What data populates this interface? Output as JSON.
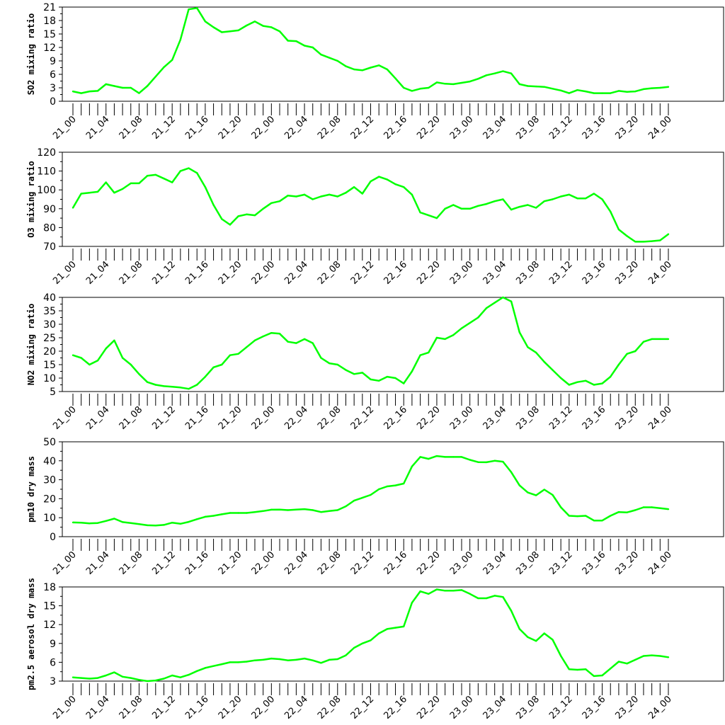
{
  "chart_data": [
    {
      "type": "line",
      "ylabel": "SO2 mixing ratio",
      "ylim": [
        0,
        21
      ],
      "yticks": [
        0,
        3,
        6,
        9,
        12,
        15,
        18,
        21
      ],
      "color": "#00ff00",
      "x_labels": [
        "21_00",
        "21_04",
        "21_08",
        "21_12",
        "21_16",
        "21_20",
        "22_00",
        "22_04",
        "22_08",
        "22_12",
        "22_16",
        "22_20",
        "23_00",
        "23_04",
        "23_08",
        "23_12",
        "23_16",
        "23_20",
        "24_00"
      ],
      "values": [
        2.2,
        1.8,
        2.2,
        2.3,
        3.8,
        3.4,
        3.0,
        3.0,
        1.8,
        3.4,
        5.5,
        7.6,
        9.2,
        13.7,
        20.5,
        20.8,
        17.8,
        16.5,
        15.4,
        15.6,
        15.8,
        16.9,
        17.8,
        16.8,
        16.5,
        15.6,
        13.5,
        13.4,
        12.4,
        12.0,
        10.4,
        9.7,
        9.0,
        7.8,
        7.1,
        6.9,
        7.5,
        8.0,
        7.1,
        5.1,
        3.0,
        2.3,
        2.8,
        3.0,
        4.2,
        3.9,
        3.8,
        4.1,
        4.4,
        5.0,
        5.8,
        6.2,
        6.7,
        6.2,
        3.8,
        3.4,
        3.3,
        3.2,
        2.8,
        2.4,
        1.8,
        2.5,
        2.2,
        1.8,
        1.8,
        1.8,
        2.3,
        2.1,
        2.2,
        2.7,
        2.9,
        3.0,
        3.2
      ]
    },
    {
      "type": "line",
      "ylabel": "O3 mixing ratio",
      "ylim": [
        70,
        120
      ],
      "yticks": [
        70,
        80,
        90,
        100,
        110,
        120
      ],
      "color": "#00ff00",
      "x_labels": [
        "21_00",
        "21_04",
        "21_08",
        "21_12",
        "21_16",
        "21_20",
        "22_00",
        "22_04",
        "22_08",
        "22_12",
        "22_16",
        "22_20",
        "23_00",
        "23_04",
        "23_08",
        "23_12",
        "23_16",
        "23_20",
        "24_00"
      ],
      "values": [
        90.5,
        98,
        98.5,
        99,
        104,
        98.5,
        100.5,
        103.5,
        103.5,
        107.5,
        108,
        106,
        104,
        110,
        111.5,
        109,
        101.5,
        92,
        84.5,
        81.5,
        86,
        87,
        86.5,
        90,
        93,
        94,
        97,
        96.5,
        97.5,
        95,
        96.5,
        97.5,
        96.5,
        98.5,
        101.5,
        98,
        104.5,
        107,
        105.5,
        103,
        101.5,
        97.5,
        88,
        86.5,
        85,
        90,
        92,
        90,
        90,
        91.5,
        92.5,
        94,
        95,
        89.5,
        91,
        92,
        90.5,
        94,
        95,
        96.5,
        97.5,
        95.5,
        95.5,
        98,
        95,
        88.5,
        79,
        75.5,
        72.5,
        72.5,
        72.8,
        73.2,
        76.5
      ]
    },
    {
      "type": "line",
      "ylabel": "NO2 mixing ratio",
      "ylim": [
        5,
        40
      ],
      "yticks": [
        5,
        10,
        15,
        20,
        25,
        30,
        35,
        40
      ],
      "color": "#00ff00",
      "x_labels": [
        "21_00",
        "21_04",
        "21_08",
        "21_12",
        "21_16",
        "21_20",
        "22_00",
        "22_04",
        "22_08",
        "22_12",
        "22_16",
        "22_20",
        "23_00",
        "23_04",
        "23_08",
        "23_12",
        "23_16",
        "23_20",
        "24_00"
      ],
      "values": [
        18.5,
        17.5,
        15,
        16.5,
        21,
        24,
        17.5,
        15,
        11.5,
        8.5,
        7.5,
        7,
        6.8,
        6.5,
        6,
        7.5,
        10.5,
        14,
        15,
        18.5,
        19,
        21.5,
        24,
        25.5,
        26.8,
        26.5,
        23.5,
        23,
        24.5,
        23,
        17.5,
        15.5,
        15,
        13,
        11.5,
        12,
        9.5,
        9,
        10.5,
        10,
        8,
        12.5,
        18.5,
        19.5,
        25,
        24.5,
        26,
        28.5,
        30.5,
        32.5,
        36,
        38,
        40,
        38.5,
        27,
        21.5,
        19.5,
        16,
        13,
        10,
        7.5,
        8.5,
        9,
        7.5,
        8,
        10.5,
        15,
        19,
        20,
        23.5,
        24.5,
        24.5,
        24.5
      ]
    },
    {
      "type": "line",
      "ylabel": "pm10 dry mass",
      "ylim": [
        0,
        50
      ],
      "yticks": [
        0,
        10,
        20,
        30,
        40,
        50
      ],
      "color": "#00ff00",
      "x_labels": [
        "21_00",
        "21_04",
        "21_08",
        "21_12",
        "21_16",
        "21_20",
        "22_00",
        "22_04",
        "22_08",
        "22_12",
        "22_16",
        "22_20",
        "23_00",
        "23_04",
        "23_08",
        "23_12",
        "23_16",
        "23_20",
        "24_00"
      ],
      "values": [
        7.5,
        7.4,
        7,
        7.2,
        8.3,
        9.5,
        7.7,
        7.2,
        6.6,
        6,
        5.9,
        6.2,
        7.4,
        6.8,
        7.8,
        9.2,
        10.5,
        11,
        11.8,
        12.5,
        12.5,
        12.5,
        13,
        13.5,
        14.2,
        14.3,
        14,
        14.3,
        14.5,
        14,
        13,
        13.5,
        14,
        16,
        19,
        20.5,
        22,
        25,
        26.5,
        27,
        28,
        37,
        42,
        41,
        42.5,
        42,
        42,
        42,
        40.5,
        39.3,
        39.2,
        40,
        39.5,
        34,
        27,
        23.3,
        21.8,
        24.8,
        22,
        15.5,
        11,
        10.8,
        11,
        8.5,
        8.5,
        11,
        13,
        12.8,
        14,
        15.5,
        15.5,
        15,
        14.5
      ]
    },
    {
      "type": "line",
      "ylabel": "pm2.5 aerosol dry mass",
      "ylim": [
        3,
        18
      ],
      "yticks": [
        3,
        6,
        9,
        12,
        15,
        18
      ],
      "color": "#00ff00",
      "x_labels": [
        "21_00",
        "21_04",
        "21_08",
        "21_12",
        "21_16",
        "21_20",
        "22_00",
        "22_04",
        "22_08",
        "22_12",
        "22_16",
        "22_20",
        "23_00",
        "23_04",
        "23_08",
        "23_12",
        "23_16",
        "23_20",
        "24_00"
      ],
      "values": [
        3.6,
        3.5,
        3.4,
        3.5,
        3.9,
        4.4,
        3.7,
        3.5,
        3.2,
        3.0,
        3.1,
        3.4,
        3.9,
        3.6,
        4.0,
        4.6,
        5.1,
        5.4,
        5.7,
        6.0,
        6.0,
        6.1,
        6.3,
        6.4,
        6.6,
        6.5,
        6.3,
        6.4,
        6.6,
        6.3,
        5.9,
        6.4,
        6.5,
        7.1,
        8.3,
        9.0,
        9.5,
        10.6,
        11.3,
        11.5,
        11.7,
        15.5,
        17.3,
        16.9,
        17.6,
        17.4,
        17.4,
        17.5,
        16.9,
        16.2,
        16.2,
        16.6,
        16.4,
        14.2,
        11.3,
        10.0,
        9.4,
        10.6,
        9.6,
        7.0,
        4.9,
        4.8,
        4.9,
        3.8,
        3.9,
        5.0,
        6.1,
        5.8,
        6.4,
        7.0,
        7.1,
        7.0,
        6.8
      ]
    }
  ]
}
